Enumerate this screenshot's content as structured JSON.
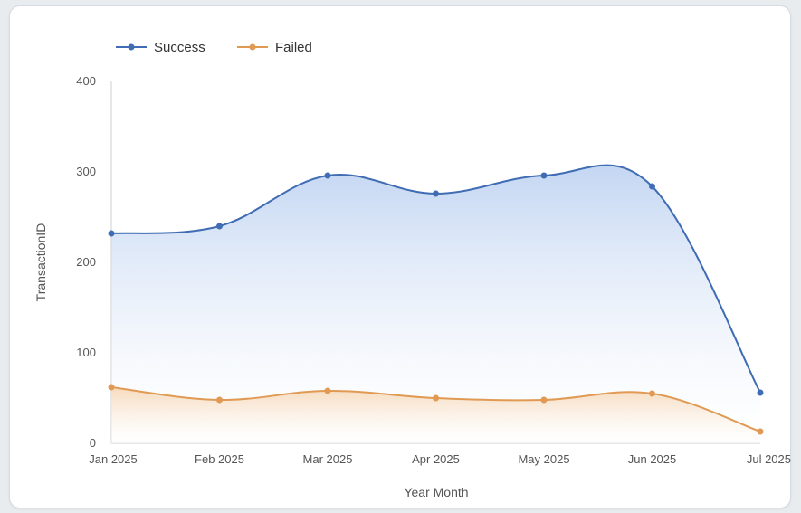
{
  "chart_data": {
    "type": "area",
    "categories": [
      "Jan 2025",
      "Feb 2025",
      "Mar 2025",
      "Apr 2025",
      "May 2025",
      "Jun 2025",
      "Jul 2025"
    ],
    "series": [
      {
        "name": "Success",
        "values": [
          232,
          240,
          296,
          276,
          296,
          284,
          56
        ],
        "color": "#3f6cb3"
      },
      {
        "name": "Failed",
        "values": [
          62,
          48,
          58,
          50,
          48,
          55,
          13
        ],
        "color": "#e09a54"
      }
    ],
    "xlabel": "Year Month",
    "ylabel": "TransactionID",
    "ylim": [
      0,
      400
    ],
    "yticks": [
      0,
      100,
      200,
      300,
      400
    ],
    "legend": "top-left",
    "grid": false,
    "smooth": true
  }
}
